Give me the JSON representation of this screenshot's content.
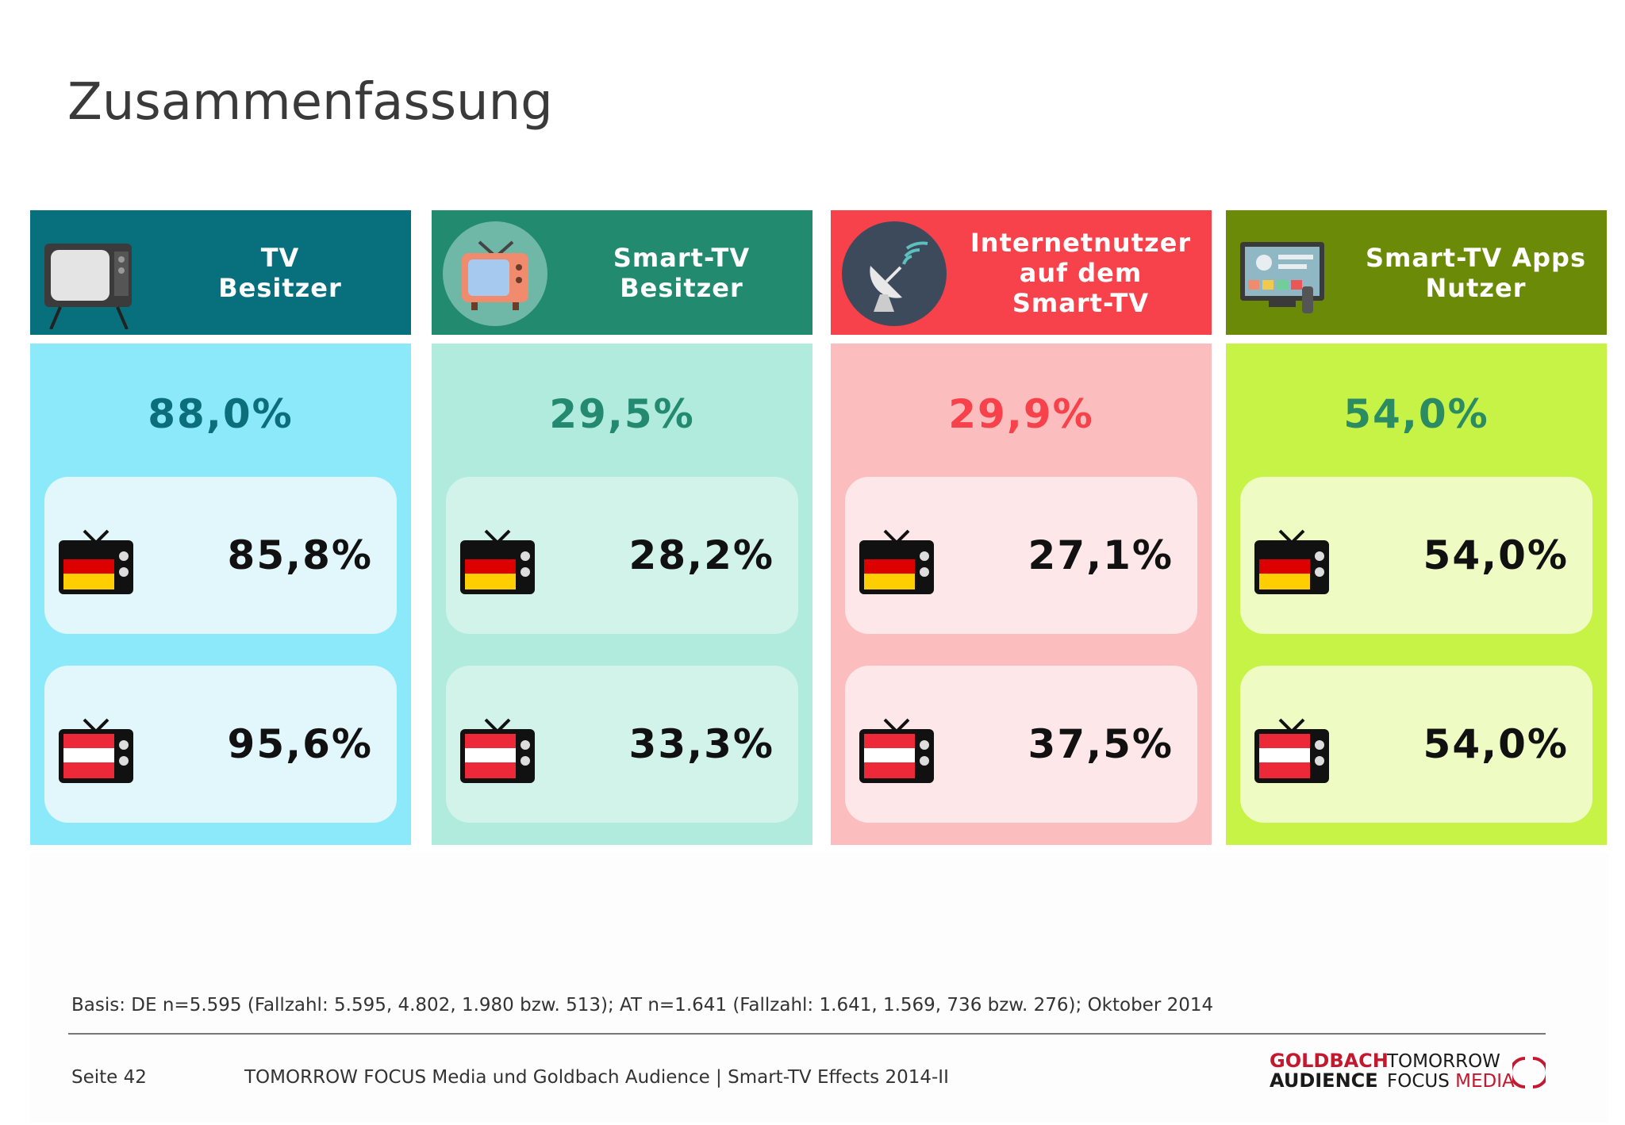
{
  "page": {
    "title": "Zusammenfassung"
  },
  "colors": {
    "tv": {
      "header": "#086f7c",
      "body": "#8ce9fa",
      "sub": "#e1f7fc",
      "total_text": "#0c6e7b"
    },
    "smart": {
      "header": "#228a6f",
      "body": "#b0ebde",
      "sub": "#d2f3ea",
      "total_text": "#238a70"
    },
    "internet": {
      "header": "#f7414b",
      "body": "#fcbdbe",
      "sub": "#fee7e8",
      "total_text": "#f7414b"
    },
    "apps": {
      "header": "#6b8a07",
      "body": "#c6f345",
      "sub": "#eefcc3",
      "total_text": "#2b8b62"
    }
  },
  "chart_data": {
    "type": "table",
    "columns": [
      {
        "key": "tv",
        "title": "TV\nBesitzer",
        "icon": "retro-tv-icon",
        "total": "88,0%",
        "de": "85,8%",
        "at": "95,6%"
      },
      {
        "key": "smart",
        "title": "Smart-TV\nBesitzer",
        "icon": "tv-antenna-icon",
        "total": "29,5%",
        "de": "28,2%",
        "at": "33,3%"
      },
      {
        "key": "internet",
        "title": "Internetnutzer\nauf dem\nSmart-TV",
        "icon": "satellite-dish-icon",
        "total": "29,9%",
        "de": "27,1%",
        "at": "37,5%"
      },
      {
        "key": "apps",
        "title": "Smart-TV Apps\nNutzer",
        "icon": "smart-tv-apps-icon",
        "total": "54,0%",
        "de": "54,0%",
        "at": "54,0%"
      }
    ],
    "values_percent": {
      "total": [
        88.0,
        29.5,
        29.9,
        54.0
      ],
      "DE": [
        85.8,
        28.2,
        27.1,
        54.0
      ],
      "AT": [
        95.6,
        33.3,
        37.5,
        54.0
      ]
    }
  },
  "footer": {
    "basis": "Basis: DE n=5.595 (Fallzahl: 5.595, 4.802, 1.980 bzw. 513); AT n=1.641 (Fallzahl: 1.641, 1.569, 736 bzw. 276);  Oktober 2014",
    "page": "Seite 42",
    "source": "TOMORROW FOCUS Media und Goldbach Audience | Smart-TV Effects 2014-II",
    "logo_goldbach": [
      "GOLDBACH",
      "AUDIENCE"
    ],
    "logo_tomorrow": [
      "TOMORROW",
      "FOCUS",
      "MEDIA"
    ]
  }
}
